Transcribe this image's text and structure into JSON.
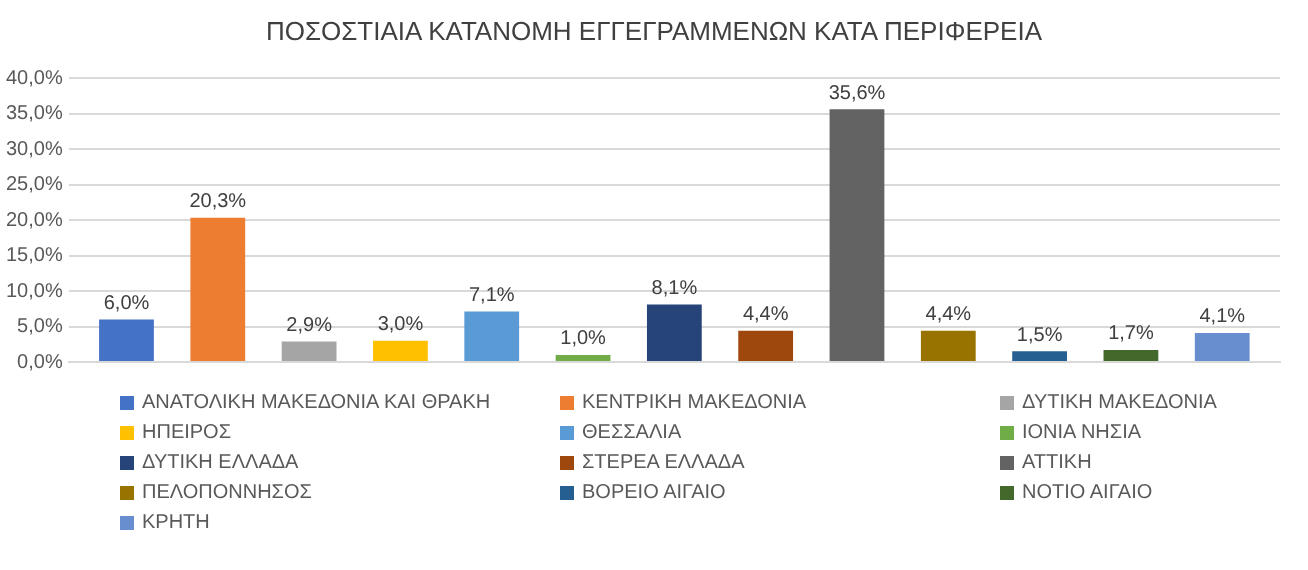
{
  "chart_data": {
    "type": "bar",
    "title": "ΠΟΣΟΣΤΙΑΙΑ ΚΑΤΑΝΟΜΗ ΕΓΓΕΓΡΑΜΜΕΝΩΝ ΚΑΤΑ ΠΕΡΙΦΕΡΕΙΑ",
    "categories": [
      null
    ],
    "series": [
      {
        "name": "ΑΝΑΤΟΛΙΚΗ ΜΑΚΕΔΟΝΙΑ ΚΑΙ ΘΡΑΚΗ",
        "color": "#4472c4",
        "values": [
          6.0
        ],
        "value_labels": [
          "6,0%"
        ]
      },
      {
        "name": "ΚΕΝΤΡΙΚΗ ΜΑΚΕΔΟΝΙΑ",
        "color": "#ed7d31",
        "values": [
          20.3
        ],
        "value_labels": [
          "20,3%"
        ]
      },
      {
        "name": "ΔΥΤΙΚΗ ΜΑΚΕΔΟΝΙΑ",
        "color": "#a5a5a5",
        "values": [
          2.9
        ],
        "value_labels": [
          "2,9%"
        ]
      },
      {
        "name": "ΗΠΕΙΡΟΣ",
        "color": "#ffc000",
        "values": [
          3.0
        ],
        "value_labels": [
          "3,0%"
        ]
      },
      {
        "name": "ΘΕΣΣΑΛΙΑ",
        "color": "#5b9bd5",
        "values": [
          7.1
        ],
        "value_labels": [
          "7,1%"
        ]
      },
      {
        "name": "ΙΟΝΙΑ ΝΗΣΙΑ",
        "color": "#70ad47",
        "values": [
          1.0
        ],
        "value_labels": [
          "1,0%"
        ]
      },
      {
        "name": "ΔΥΤΙΚΗ ΕΛΛΑΔΑ",
        "color": "#264478",
        "values": [
          8.1
        ],
        "value_labels": [
          "8,1%"
        ]
      },
      {
        "name": "ΣΤΕΡΕΑ ΕΛΛΑΔΑ",
        "color": "#9e480e",
        "values": [
          4.4
        ],
        "value_labels": [
          "4,4%"
        ]
      },
      {
        "name": "ΑΤΤΙΚΗ",
        "color": "#636363",
        "values": [
          35.6
        ],
        "value_labels": [
          "35,6%"
        ]
      },
      {
        "name": "ΠΕΛΟΠΟΝΝΗΣΟΣ",
        "color": "#997300",
        "values": [
          4.4
        ],
        "value_labels": [
          "4,4%"
        ]
      },
      {
        "name": "ΒΟΡΕΙΟ ΑΙΓΑΙΟ",
        "color": "#255e91",
        "values": [
          1.5
        ],
        "value_labels": [
          "1,5%"
        ]
      },
      {
        "name": "ΝΟΤΙΟ ΑΙΓΑΙΟ",
        "color": "#43682b",
        "values": [
          1.7
        ],
        "value_labels": [
          "1,7%"
        ]
      },
      {
        "name": "ΚΡΗΤΗ",
        "color": "#698ed0",
        "values": [
          4.1
        ],
        "value_labels": [
          "4,1%"
        ]
      }
    ],
    "ylim": [
      0,
      40
    ],
    "yticks": [
      {
        "value": 0,
        "label": "0,0%"
      },
      {
        "value": 5,
        "label": "5,0%"
      },
      {
        "value": 10,
        "label": "10,0%"
      },
      {
        "value": 15,
        "label": "15,0%"
      },
      {
        "value": 20,
        "label": "20,0%"
      },
      {
        "value": 25,
        "label": "25,0%"
      },
      {
        "value": 30,
        "label": "30,0%"
      },
      {
        "value": 35,
        "label": "35,0%"
      },
      {
        "value": 40,
        "label": "40,0%"
      }
    ],
    "grid": "y",
    "legend": "bottom"
  }
}
